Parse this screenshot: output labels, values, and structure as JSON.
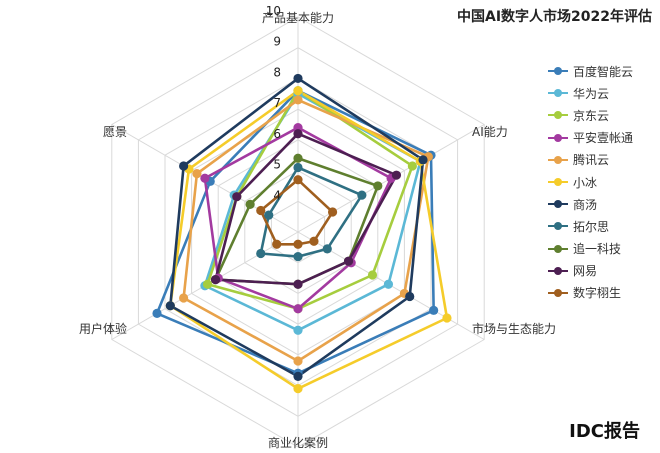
{
  "chart_data": {
    "type": "radar",
    "title": "中国AI数字人市场2022年评估",
    "axes": [
      "产品基本能力",
      "AI能力",
      "市场与生态能力",
      "商业化案例",
      "用户体验",
      "愿景"
    ],
    "rlim": [
      3,
      10
    ],
    "ticks": [
      "4",
      "5",
      "6",
      "7",
      "8",
      "9",
      "10"
    ],
    "grid": true,
    "legend_position": "right",
    "series": [
      {
        "name": "百度智能云",
        "color": "#3a7db8",
        "values": [
          7.6,
          8.0,
          8.1,
          7.6,
          8.3,
          6.3
        ]
      },
      {
        "name": "华为云",
        "color": "#5bb8d6",
        "values": [
          7.5,
          7.6,
          6.4,
          6.2,
          6.5,
          5.4
        ]
      },
      {
        "name": "京东云",
        "color": "#a6cd3e",
        "values": [
          7.6,
          7.3,
          5.8,
          5.5,
          6.4,
          5.3
        ]
      },
      {
        "name": "平安壹帐通",
        "color": "#a33aa0",
        "values": [
          6.4,
          6.5,
          5.0,
          5.5,
          6.0,
          6.5
        ]
      },
      {
        "name": "腾讯云",
        "color": "#e8a24a",
        "values": [
          7.3,
          7.9,
          7.0,
          7.2,
          7.3,
          6.8
        ]
      },
      {
        "name": "小冰",
        "color": "#f5cc2a",
        "values": [
          7.6,
          7.6,
          8.6,
          8.1,
          7.8,
          7.1
        ]
      },
      {
        "name": "商汤",
        "color": "#1f3b5e",
        "values": [
          8.0,
          7.7,
          7.2,
          7.7,
          7.8,
          7.3
        ]
      },
      {
        "name": "拓尔思",
        "color": "#2f7083",
        "values": [
          5.1,
          5.4,
          4.1,
          3.8,
          4.4,
          4.1
        ]
      },
      {
        "name": "追一科技",
        "color": "#5f7f2f",
        "values": [
          5.4,
          6.0,
          4.9,
          4.7,
          6.1,
          4.8
        ]
      },
      {
        "name": "网易",
        "color": "#4d1f52",
        "values": [
          6.2,
          6.7,
          4.9,
          4.7,
          6.1,
          5.3
        ]
      },
      {
        "name": "数字栩生",
        "color": "#a05f1f",
        "values": [
          4.7,
          4.3,
          3.6,
          3.4,
          3.8,
          4.4
        ]
      }
    ]
  },
  "source": "IDC报告"
}
